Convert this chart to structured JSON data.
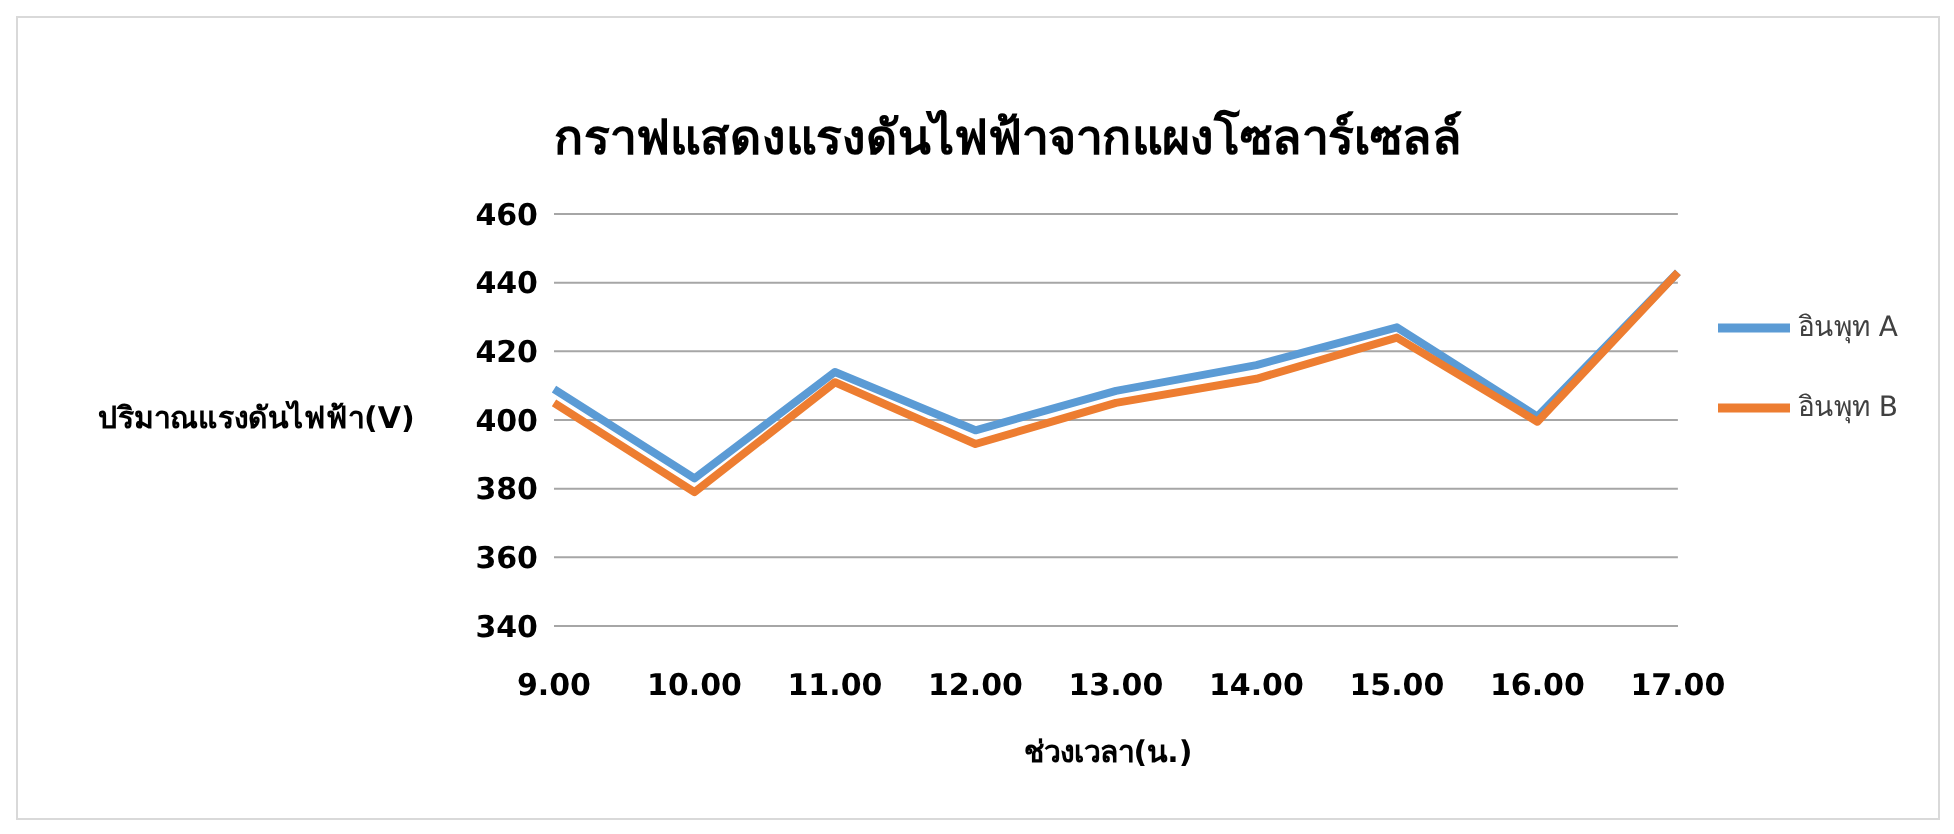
{
  "chart_data": {
    "type": "line",
    "title": "กราฟแสดงแรงดันไฟฟ้าจากแผงโซลาร์เซลล์",
    "xlabel": "ช่วงเวลา(น.)",
    "ylabel": "ปริมาณแรงดันไฟฟ้า(V)",
    "categories": [
      "9.00",
      "10.00",
      "11.00",
      "12.00",
      "13.00",
      "14.00",
      "15.00",
      "16.00",
      "17.00"
    ],
    "series": [
      {
        "name": "อินพุท A",
        "color": "#5b9bd5",
        "values": [
          409,
          383,
          414,
          397,
          408.5,
          416,
          427,
          401,
          443
        ]
      },
      {
        "name": "อินพุท B",
        "color": "#ed7d31",
        "values": [
          405,
          379,
          411,
          393,
          405,
          412,
          424,
          399.5,
          443
        ]
      }
    ],
    "ylim": [
      340,
      460
    ],
    "yticks": [
      340,
      360,
      380,
      400,
      420,
      440,
      460
    ],
    "grid": "y",
    "legend": "right",
    "marker": "none",
    "line_style": "solid"
  }
}
